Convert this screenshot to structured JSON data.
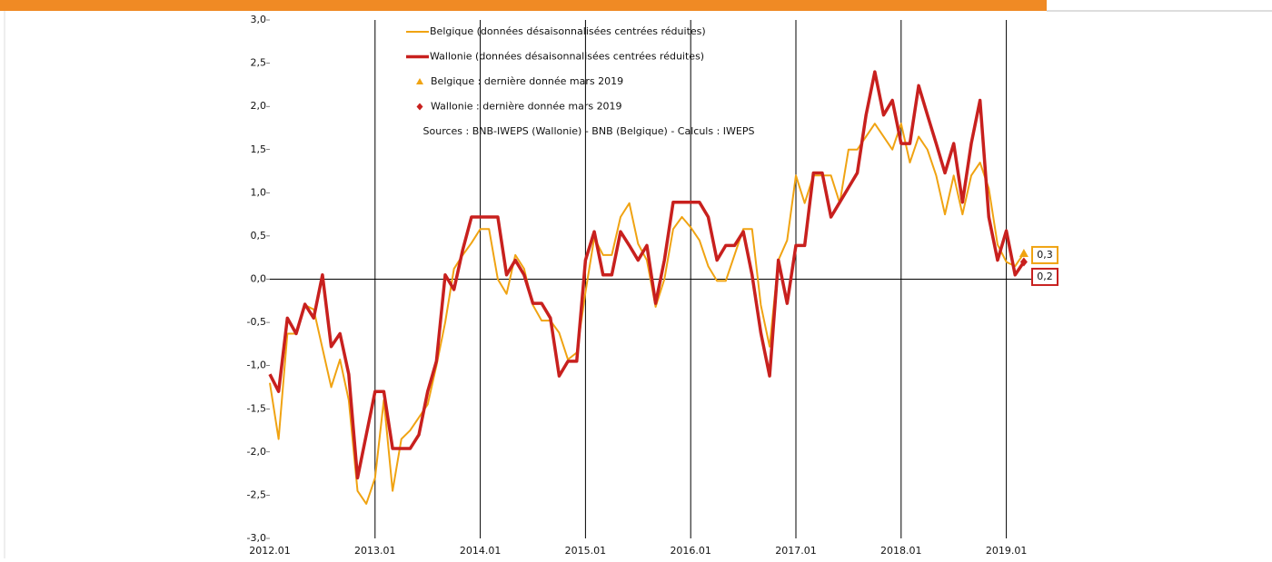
{
  "chart_data": {
    "type": "line",
    "annotation": "Sources : BNB-IWEPS (Wallonie) - BNB (Belgique) - Calculs : IWEPS",
    "categories": [
      "2012.01",
      null,
      null,
      null,
      null,
      null,
      null,
      null,
      null,
      null,
      null,
      null,
      "2013.01",
      null,
      null,
      null,
      null,
      null,
      null,
      null,
      null,
      null,
      null,
      null,
      "2014.01",
      null,
      null,
      null,
      null,
      null,
      null,
      null,
      null,
      null,
      null,
      null,
      "2015.01",
      null,
      null,
      null,
      null,
      null,
      null,
      null,
      null,
      null,
      null,
      null,
      "2016.01",
      null,
      null,
      null,
      null,
      null,
      null,
      null,
      null,
      null,
      null,
      null,
      "2017.01",
      null,
      null,
      null,
      null,
      null,
      null,
      null,
      null,
      null,
      null,
      null,
      "2018.01",
      null,
      null,
      null,
      null,
      null,
      null,
      null,
      null,
      null,
      null,
      null,
      "2019.01",
      null,
      null
    ],
    "series": [
      {
        "name": "Belgique (données désaisonnalisées centrées réduites)",
        "color": "#f0a312",
        "width": 2,
        "values": [
          -1.2,
          -1.85,
          -0.63,
          -0.63,
          -0.3,
          -0.35,
          -0.8,
          -1.25,
          -0.93,
          -1.4,
          -2.45,
          -2.6,
          -2.3,
          -1.4,
          -2.45,
          -1.85,
          -1.75,
          -1.6,
          -1.45,
          -1.0,
          -0.5,
          0.12,
          0.28,
          0.42,
          0.58,
          0.58,
          0.0,
          -0.17,
          0.28,
          0.12,
          -0.3,
          -0.48,
          -0.48,
          -0.62,
          -0.93,
          -0.85,
          -0.15,
          0.48,
          0.28,
          0.28,
          0.72,
          0.88,
          0.41,
          0.22,
          -0.32,
          0.0,
          0.58,
          0.72,
          0.6,
          0.45,
          0.15,
          -0.02,
          -0.02,
          0.28,
          0.58,
          0.58,
          -0.3,
          -0.78,
          0.22,
          0.45,
          1.2,
          0.88,
          1.2,
          1.2,
          1.2,
          0.88,
          1.5,
          1.5,
          1.65,
          1.8,
          1.65,
          1.5,
          1.8,
          1.35,
          1.65,
          1.5,
          1.2,
          0.75,
          1.2,
          0.75,
          1.2,
          1.35,
          1.05,
          0.4,
          0.2,
          0.15,
          0.3
        ]
      },
      {
        "name": "Wallonie (données désaisonnalisées centrées réduites)",
        "color": "#c8201e",
        "width": 3.5,
        "values": [
          -1.1,
          -1.3,
          -0.45,
          -0.63,
          -0.29,
          -0.45,
          0.05,
          -0.78,
          -0.63,
          -1.1,
          -2.3,
          -1.8,
          -1.3,
          -1.3,
          -1.96,
          -1.96,
          -1.96,
          -1.8,
          -1.3,
          -0.95,
          0.05,
          -0.12,
          0.34,
          0.72,
          0.72,
          0.72,
          0.72,
          0.05,
          0.22,
          0.05,
          -0.28,
          -0.28,
          -0.45,
          -1.12,
          -0.95,
          -0.95,
          0.22,
          0.55,
          0.05,
          0.05,
          0.55,
          0.39,
          0.22,
          0.39,
          -0.28,
          0.22,
          0.89,
          0.89,
          0.89,
          0.89,
          0.72,
          0.22,
          0.39,
          0.39,
          0.55,
          0.05,
          -0.62,
          -1.12,
          0.22,
          -0.28,
          0.39,
          0.39,
          1.23,
          1.23,
          0.72,
          0.89,
          1.06,
          1.23,
          1.9,
          2.4,
          1.9,
          2.07,
          1.57,
          1.57,
          2.24,
          1.9,
          1.57,
          1.23,
          1.57,
          0.89,
          1.57,
          2.07,
          0.72,
          0.22,
          0.56,
          0.05,
          0.2
        ]
      },
      {
        "name": "Belgique : dernière donnée mars 2019",
        "color": "#f0a312",
        "marker": "triangle",
        "values": [
          null,
          null,
          null,
          null,
          null,
          null,
          null,
          null,
          null,
          null,
          null,
          null,
          null,
          null,
          null,
          null,
          null,
          null,
          null,
          null,
          null,
          null,
          null,
          null,
          null,
          null,
          null,
          null,
          null,
          null,
          null,
          null,
          null,
          null,
          null,
          null,
          null,
          null,
          null,
          null,
          null,
          null,
          null,
          null,
          null,
          null,
          null,
          null,
          null,
          null,
          null,
          null,
          null,
          null,
          null,
          null,
          null,
          null,
          null,
          null,
          null,
          null,
          null,
          null,
          null,
          null,
          null,
          null,
          null,
          null,
          null,
          null,
          null,
          null,
          null,
          null,
          null,
          null,
          null,
          null,
          null,
          null,
          null,
          null,
          null,
          null,
          0.3
        ],
        "value_labels": [
          null,
          null,
          null,
          null,
          null,
          null,
          null,
          null,
          null,
          null,
          null,
          null,
          null,
          null,
          null,
          null,
          null,
          null,
          null,
          null,
          null,
          null,
          null,
          null,
          null,
          null,
          null,
          null,
          null,
          null,
          null,
          null,
          null,
          null,
          null,
          null,
          null,
          null,
          null,
          null,
          null,
          null,
          null,
          null,
          null,
          null,
          null,
          null,
          null,
          null,
          null,
          null,
          null,
          null,
          null,
          null,
          null,
          null,
          null,
          null,
          null,
          null,
          null,
          null,
          null,
          null,
          null,
          null,
          null,
          null,
          null,
          null,
          null,
          null,
          null,
          null,
          null,
          null,
          null,
          null,
          null,
          null,
          null,
          null,
          null,
          null,
          "0,3"
        ]
      },
      {
        "name": "Wallonie : dernière donnée mars 2019",
        "color": "#c8201e",
        "marker": "diamond",
        "values": [
          null,
          null,
          null,
          null,
          null,
          null,
          null,
          null,
          null,
          null,
          null,
          null,
          null,
          null,
          null,
          null,
          null,
          null,
          null,
          null,
          null,
          null,
          null,
          null,
          null,
          null,
          null,
          null,
          null,
          null,
          null,
          null,
          null,
          null,
          null,
          null,
          null,
          null,
          null,
          null,
          null,
          null,
          null,
          null,
          null,
          null,
          null,
          null,
          null,
          null,
          null,
          null,
          null,
          null,
          null,
          null,
          null,
          null,
          null,
          null,
          null,
          null,
          null,
          null,
          null,
          null,
          null,
          null,
          null,
          null,
          null,
          null,
          null,
          null,
          null,
          null,
          null,
          null,
          null,
          null,
          null,
          null,
          null,
          null,
          null,
          null,
          0.2
        ],
        "value_labels": [
          null,
          null,
          null,
          null,
          null,
          null,
          null,
          null,
          null,
          null,
          null,
          null,
          null,
          null,
          null,
          null,
          null,
          null,
          null,
          null,
          null,
          null,
          null,
          null,
          null,
          null,
          null,
          null,
          null,
          null,
          null,
          null,
          null,
          null,
          null,
          null,
          null,
          null,
          null,
          null,
          null,
          null,
          null,
          null,
          null,
          null,
          null,
          null,
          null,
          null,
          null,
          null,
          null,
          null,
          null,
          null,
          null,
          null,
          null,
          null,
          null,
          null,
          null,
          null,
          null,
          null,
          null,
          null,
          null,
          null,
          null,
          null,
          null,
          null,
          null,
          null,
          null,
          null,
          null,
          null,
          null,
          null,
          null,
          null,
          null,
          null,
          "0,2"
        ]
      }
    ],
    "ylim": [
      -3,
      3
    ],
    "yticks": [
      {
        "value": -3,
        "label": "-3,0"
      },
      {
        "value": -2.5,
        "label": "-2,5"
      },
      {
        "value": -2,
        "label": "-2,0"
      },
      {
        "value": -1.5,
        "label": "-1,5"
      },
      {
        "value": -1,
        "label": "-1,0"
      },
      {
        "value": -0.5,
        "label": "-0,5"
      },
      {
        "value": 0,
        "label": "0,0"
      },
      {
        "value": 0.5,
        "label": "0,5"
      },
      {
        "value": 1,
        "label": "1,0"
      },
      {
        "value": 1.5,
        "label": "1,5"
      },
      {
        "value": 2,
        "label": "2,0"
      },
      {
        "value": 2.5,
        "label": "2,5"
      },
      {
        "value": 3,
        "label": "3,0"
      }
    ],
    "grid": "x"
  }
}
